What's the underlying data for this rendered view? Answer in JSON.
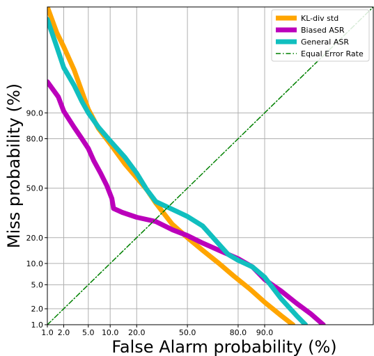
{
  "chart_data": {
    "type": "line",
    "title": "",
    "xlabel": "False Alarm probability (%)",
    "ylabel": "Miss probability (%)",
    "scale": "normal-deviate (probit)",
    "grid": true,
    "legend_position": "top-right",
    "xticks": [
      "1.0",
      "2.0",
      "5.0",
      "10.0",
      "20.0",
      "50.0",
      "80.0",
      "90.0"
    ],
    "yticks": [
      "1.0",
      "2.0",
      "5.0",
      "10.0",
      "20.0",
      "50.0",
      "80.0",
      "90.0"
    ],
    "xlim": [
      1.0,
      99.9
    ],
    "ylim": [
      1.0,
      99.9
    ],
    "series": [
      {
        "name": "KL-div std",
        "color": "#FFA500",
        "style": "solid",
        "points": [
          [
            1.0,
            99.9
          ],
          [
            1.5,
            99.6
          ],
          [
            2.0,
            99.2
          ],
          [
            3.0,
            97.8
          ],
          [
            5.0,
            91.0
          ],
          [
            7.0,
            84.5
          ],
          [
            10.0,
            77.5
          ],
          [
            15.0,
            66.0
          ],
          [
            20.0,
            57.0
          ],
          [
            25.0,
            49.0
          ],
          [
            30.0,
            40.0
          ],
          [
            40.0,
            27.0
          ],
          [
            50.0,
            20.0
          ],
          [
            60.0,
            14.5
          ],
          [
            70.0,
            10.0
          ],
          [
            78.0,
            6.7
          ],
          [
            85.0,
            4.3
          ],
          [
            90.0,
            2.6
          ],
          [
            94.0,
            1.5
          ],
          [
            96.0,
            1.0
          ]
        ]
      },
      {
        "name": "Biased ASR",
        "color": "#BB00BB",
        "style": "solid",
        "points": [
          [
            1.0,
            96.5
          ],
          [
            1.6,
            94.0
          ],
          [
            2.0,
            90.5
          ],
          [
            3.0,
            85.0
          ],
          [
            4.0,
            80.0
          ],
          [
            5.0,
            75.0
          ],
          [
            6.0,
            68.0
          ],
          [
            7.5,
            60.0
          ],
          [
            9.0,
            52.0
          ],
          [
            10.5,
            43.0
          ],
          [
            11.0,
            36.5
          ],
          [
            14.0,
            34.0
          ],
          [
            20.0,
            31.0
          ],
          [
            30.0,
            28.5
          ],
          [
            40.0,
            24.0
          ],
          [
            50.0,
            21.0
          ],
          [
            60.0,
            17.5
          ],
          [
            70.0,
            14.5
          ],
          [
            80.0,
            11.5
          ],
          [
            86.0,
            9.0
          ],
          [
            90.0,
            6.0
          ],
          [
            94.0,
            4.0
          ],
          [
            96.5,
            2.5
          ],
          [
            98.0,
            1.6
          ],
          [
            98.8,
            1.0
          ]
        ]
      },
      {
        "name": "General ASR",
        "color": "#11BFBF",
        "style": "solid",
        "points": [
          [
            1.0,
            99.8
          ],
          [
            1.5,
            99.2
          ],
          [
            2.0,
            98.0
          ],
          [
            3.0,
            96.0
          ],
          [
            4.0,
            93.0
          ],
          [
            5.0,
            90.0
          ],
          [
            7.0,
            85.0
          ],
          [
            10.0,
            79.0
          ],
          [
            15.0,
            70.0
          ],
          [
            20.0,
            60.0
          ],
          [
            25.0,
            49.0
          ],
          [
            30.0,
            41.0
          ],
          [
            40.0,
            36.0
          ],
          [
            50.0,
            31.5
          ],
          [
            60.0,
            26.0
          ],
          [
            70.0,
            17.0
          ],
          [
            75.0,
            13.0
          ],
          [
            80.0,
            11.0
          ],
          [
            86.0,
            9.0
          ],
          [
            90.0,
            6.5
          ],
          [
            94.0,
            3.0
          ],
          [
            96.5,
            1.5
          ],
          [
            97.5,
            1.0
          ]
        ]
      },
      {
        "name": "Equal Error Rate",
        "color": "#008000",
        "style": "dashdot",
        "points": [
          [
            1.0,
            1.0
          ],
          [
            99.9,
            99.9
          ]
        ]
      }
    ]
  }
}
